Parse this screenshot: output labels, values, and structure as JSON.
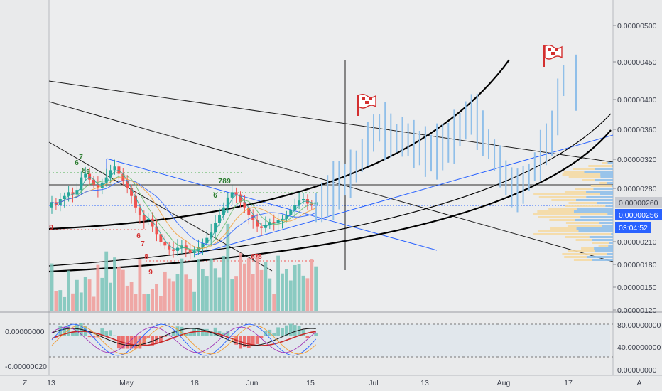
{
  "chart_data": [
    {
      "type": "candlestick",
      "title": "",
      "price_axis": {
        "ticks": [
          "0.00000500",
          "0.00000450",
          "0.00000400",
          "0.00000360",
          "0.00000320",
          "0.00000280",
          "0.00000210",
          "0.00000180",
          "0.00000150",
          "0.00000120"
        ],
        "tags": [
          {
            "label": "0.00000260",
            "kind": "price",
            "color": "#c9cbd1"
          },
          {
            "label": "0.00000256",
            "kind": "line",
            "color": "#2962ff"
          },
          {
            "label": "03:04:52",
            "kind": "countdown",
            "color": "#2962ff"
          }
        ],
        "left_button": "Z",
        "right_button": "A"
      },
      "time_axis": {
        "ticks": [
          "13",
          "May",
          "18",
          "Jun",
          "15",
          "Jul",
          "13",
          "Aug",
          "17"
        ]
      },
      "td_sequential_labels": [
        "6",
        "7",
        "8",
        "9",
        "7",
        "8",
        "9",
        "6",
        "6",
        "7",
        "8",
        "9",
        "9",
        "6",
        "7",
        "8",
        "9",
        "6",
        "7"
      ],
      "annotations": [
        "flag-icon",
        "flag-icon"
      ],
      "colors": {
        "up": "#26a69a",
        "down": "#ef5350",
        "projection": "#90bfe9",
        "ma_short": "#26a69a",
        "ma_long": "#f19d38",
        "trend_blue": "#2962ff"
      }
    },
    {
      "type": "oscillator",
      "left_ticks": [
        "0.00000000",
        "-0.00000020"
      ],
      "right_ticks": [
        "80.00000000",
        "40.00000000",
        "0.00000000"
      ]
    }
  ]
}
